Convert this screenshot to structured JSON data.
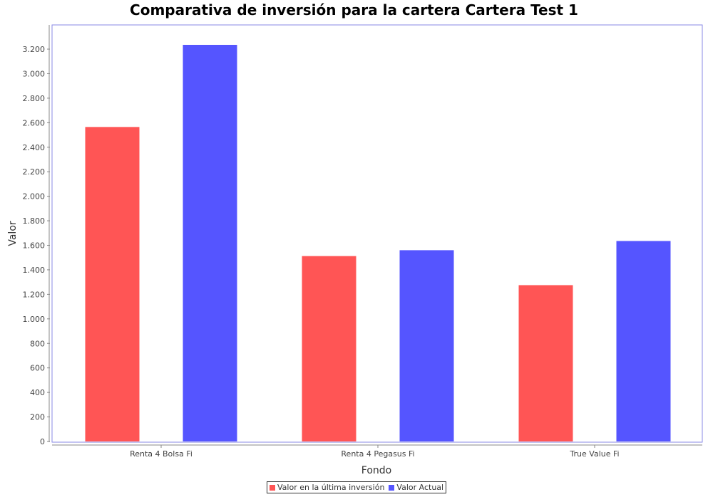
{
  "chart_data": {
    "type": "bar",
    "title": "Comparativa de inversión para la cartera Cartera Test 1",
    "xlabel": "Fondo",
    "ylabel": "Valor",
    "categories": [
      "Renta 4 Bolsa Fi",
      "Renta 4 Pegasus Fi",
      "True Value Fi"
    ],
    "series": [
      {
        "name": "Valor en la última inversión",
        "color": "#ff5555",
        "values": [
          2565,
          1512,
          1275
        ]
      },
      {
        "name": "Valor Actual",
        "color": "#5555ff",
        "values": [
          3235,
          1560,
          1635
        ]
      }
    ],
    "ylim": [
      0,
      3400
    ],
    "yticks": [
      0,
      200,
      400,
      600,
      800,
      1000,
      1200,
      1400,
      1600,
      1800,
      2000,
      2200,
      2400,
      2600,
      2800,
      3000,
      3200
    ],
    "ytick_labels": [
      "0",
      "200",
      "400",
      "600",
      "800",
      "1.000",
      "1.200",
      "1.400",
      "1.600",
      "1.800",
      "2.000",
      "2.200",
      "2.400",
      "2.600",
      "2.800",
      "3.000",
      "3.200"
    ],
    "grid": false,
    "legend_position": "bottom"
  }
}
